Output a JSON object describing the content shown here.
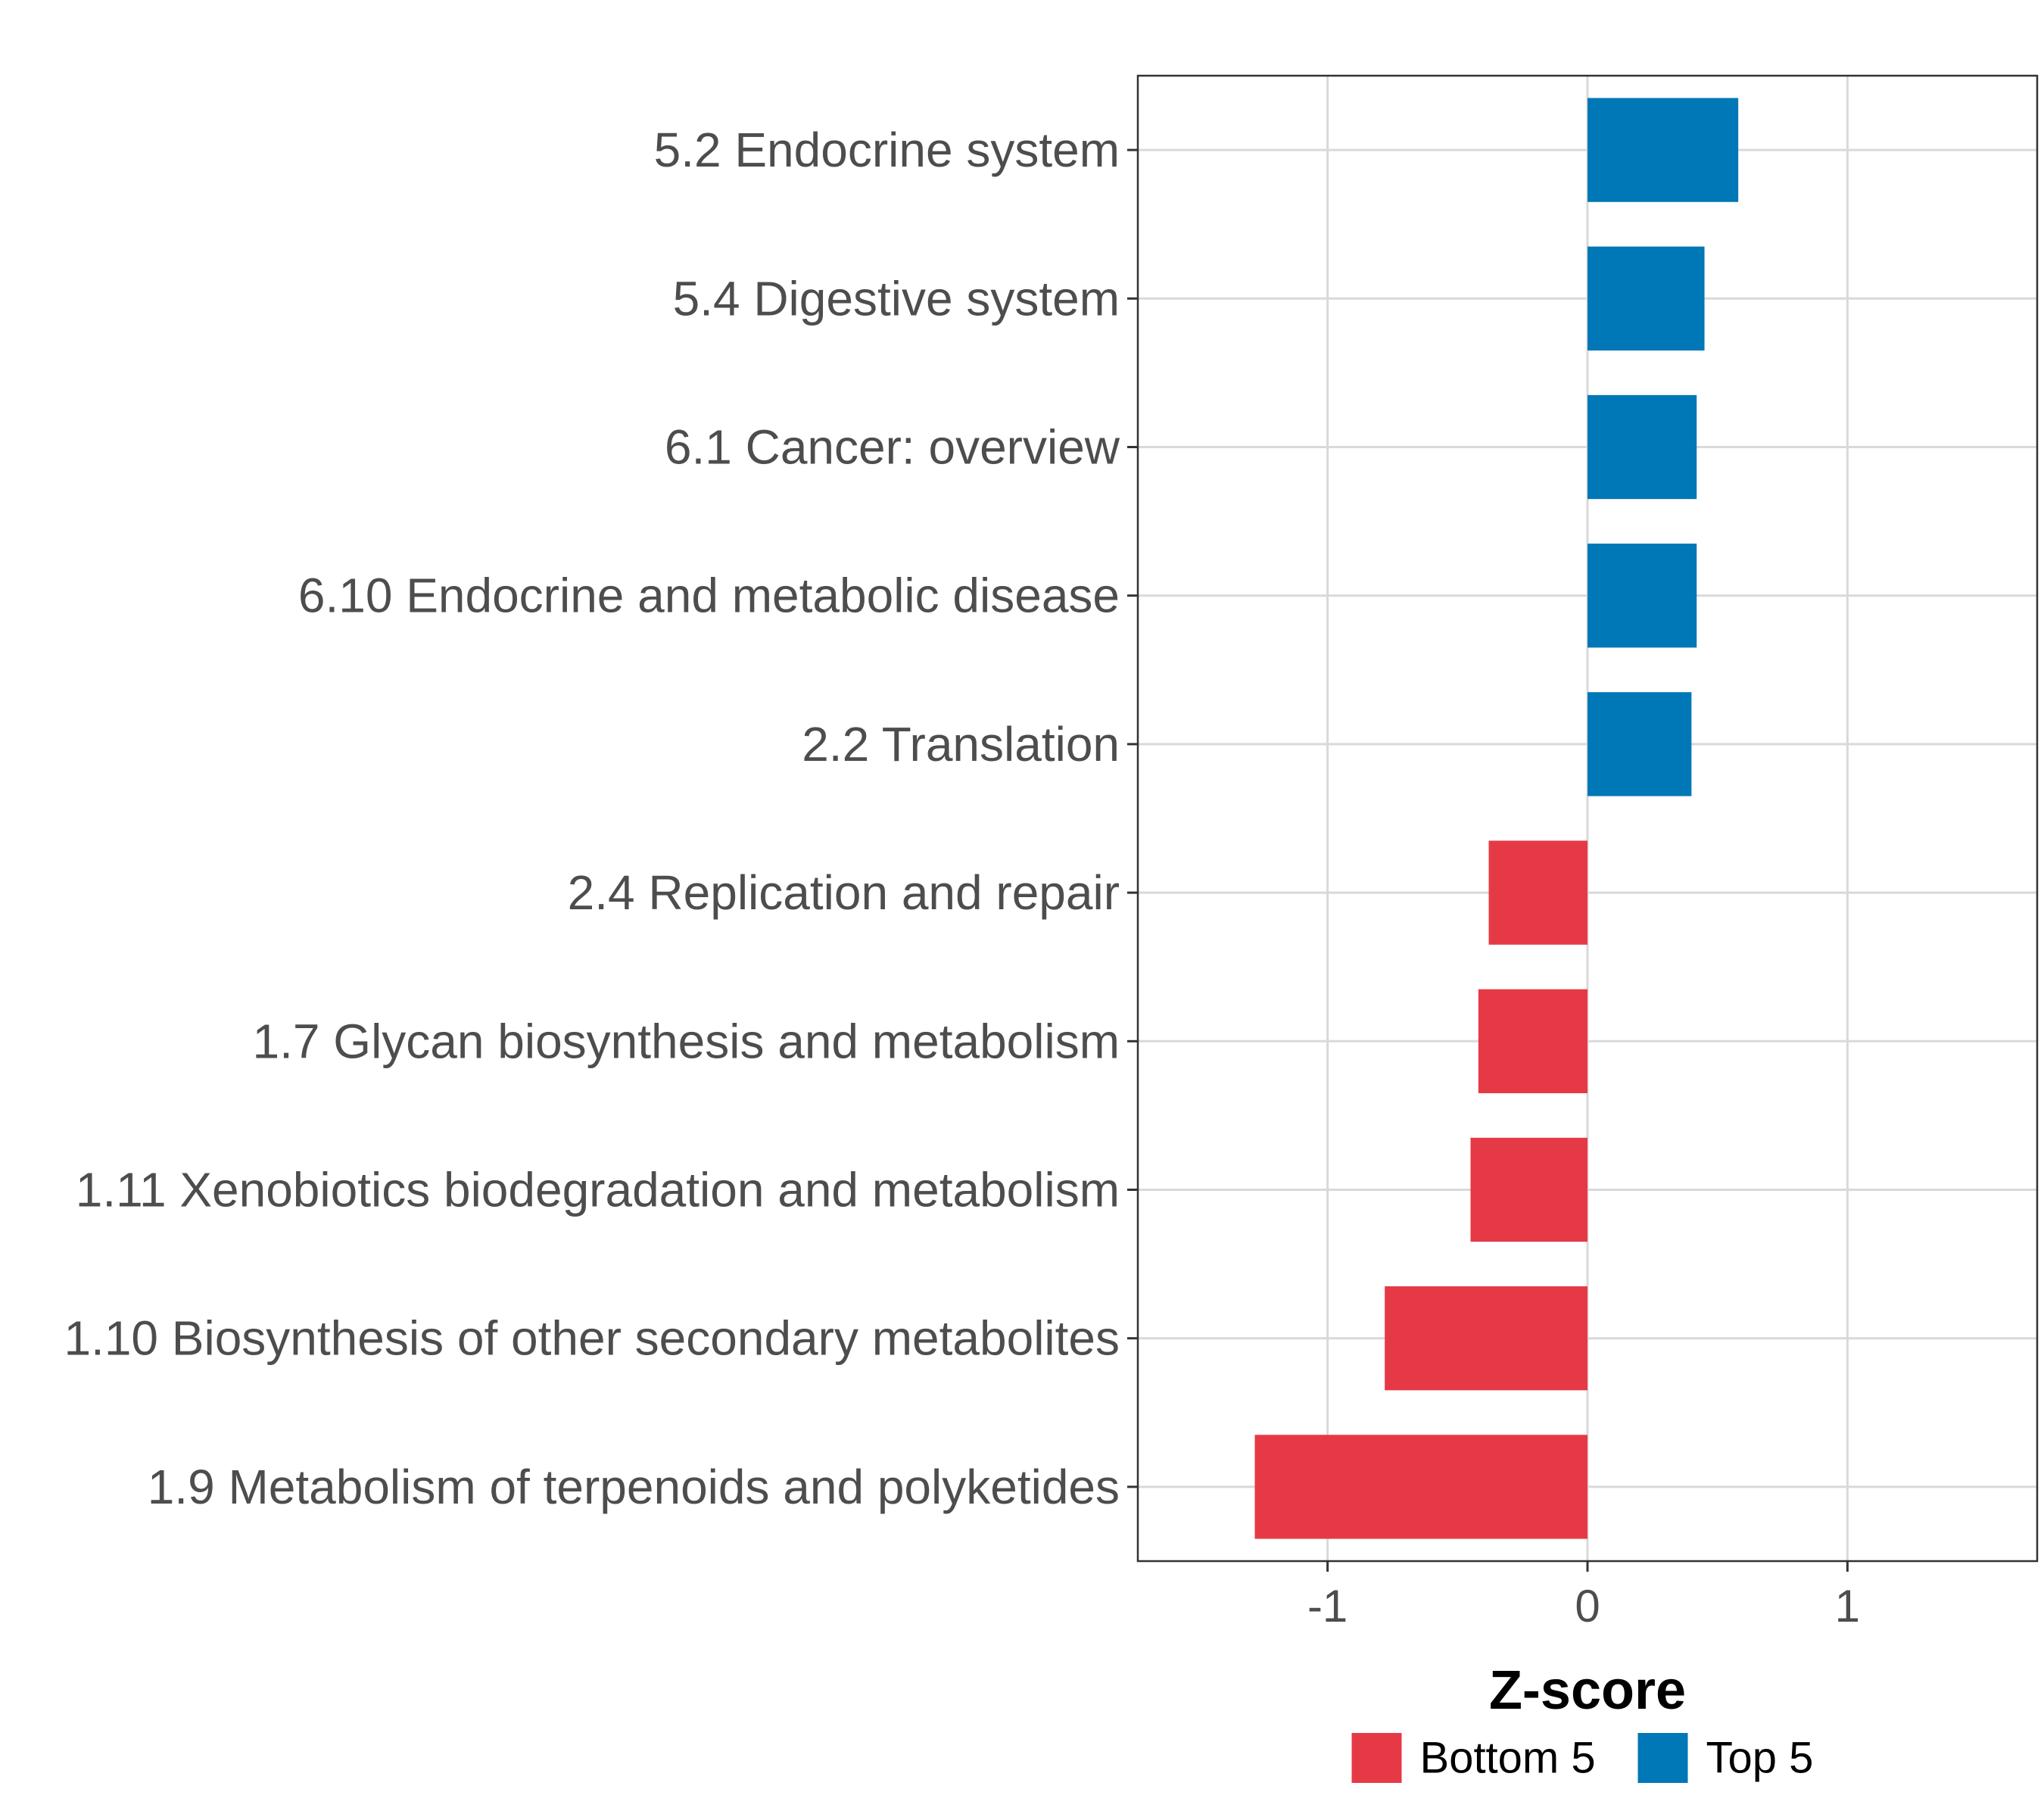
{
  "chart_data": {
    "type": "bar",
    "orientation": "horizontal",
    "categories": [
      "5.2 Endocrine system",
      "5.4 Digestive system",
      "6.1 Cancer: overview",
      "6.10 Endocrine and metabolic disease",
      "2.2 Translation",
      "2.4 Replication and repair",
      "1.7 Glycan biosynthesis and metabolism",
      "1.11 Xenobiotics biodegradation and metabolism",
      "1.10 Biosynthesis of other secondary metabolites",
      "1.9 Metabolism of terpenoids and polyketides"
    ],
    "values": [
      0.58,
      0.45,
      0.42,
      0.42,
      0.4,
      -0.38,
      -0.42,
      -0.45,
      -0.78,
      -1.28
    ],
    "groups": [
      "Top 5",
      "Top 5",
      "Top 5",
      "Top 5",
      "Top 5",
      "Bottom 5",
      "Bottom 5",
      "Bottom 5",
      "Bottom 5",
      "Bottom 5"
    ],
    "xlabel": "Z-score",
    "ylabel": "",
    "xlim": [
      -1.73,
      1.73
    ],
    "xticks": [
      "-1",
      "0",
      "1"
    ],
    "xtick_values": [
      -1,
      0,
      1
    ],
    "grid": true,
    "legend": {
      "position": "bottom",
      "entries": [
        {
          "label": "Bottom 5",
          "color": "#e63946"
        },
        {
          "label": "Top 5",
          "color": "#0077b6"
        }
      ]
    },
    "colors": {
      "Bottom 5": "#e63946",
      "Top 5": "#0077b6"
    }
  }
}
